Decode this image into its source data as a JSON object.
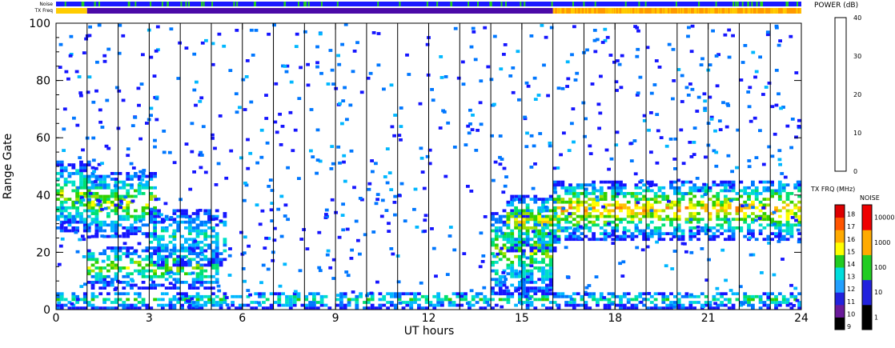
{
  "chart_data": {
    "type": "heatmap",
    "title": "",
    "xlabel": "UT hours",
    "ylabel": "Range Gate",
    "xlim": [
      0,
      24
    ],
    "ylim": [
      0,
      100
    ],
    "x_ticks": [
      "0",
      "3",
      "6",
      "9",
      "12",
      "15",
      "18",
      "21",
      "24"
    ],
    "y_ticks": [
      "0",
      "20",
      "40",
      "60",
      "80",
      "100"
    ],
    "hour_lines": [
      1,
      2,
      3,
      4,
      5,
      6,
      7,
      8,
      9,
      10,
      11,
      12,
      13,
      14,
      15,
      16,
      17,
      18,
      19,
      20,
      21,
      22,
      23
    ],
    "grid": false,
    "strips": {
      "noise_label": "Noise",
      "txfreq_label": "TX Freq",
      "noise_color": "#1a1aff",
      "noise_flag_color": "#22cc22",
      "txfreq_segments": [
        {
          "x0": 0,
          "x1": 1,
          "color": "#ffcc00"
        },
        {
          "x0": 1,
          "x1": 16,
          "color": "#4b0aa8"
        },
        {
          "x0": 16,
          "x1": 24,
          "color": "#ff9900"
        }
      ]
    },
    "echo_regions": [
      {
        "name": "band-0-2h",
        "x0": 0,
        "x1": 1.2,
        "y0": 27,
        "y1": 52,
        "peak": 20
      },
      {
        "name": "band-1-3h",
        "x0": 1.0,
        "x1": 3.2,
        "y0": 25,
        "y1": 48,
        "peak": 22
      },
      {
        "name": "band-1-5h-low",
        "x0": 1.0,
        "x1": 5.2,
        "y0": 7,
        "y1": 22,
        "peak": 20
      },
      {
        "name": "band-3-5h",
        "x0": 3.0,
        "x1": 5.5,
        "y0": 15,
        "y1": 35,
        "peak": 12
      },
      {
        "name": "ground-gates",
        "x0": 0,
        "x1": 24,
        "y0": 0,
        "y1": 6,
        "peak": 14
      },
      {
        "name": "band-14-16h",
        "x0": 14.0,
        "x1": 16.0,
        "y0": 5,
        "y1": 35,
        "peak": 20
      },
      {
        "name": "band-15-16h",
        "x0": 14.5,
        "x1": 16.2,
        "y0": 20,
        "y1": 40,
        "peak": 25
      },
      {
        "name": "band-16-24h",
        "x0": 16.0,
        "x1": 24,
        "y0": 24,
        "y1": 45,
        "peak": 28
      }
    ],
    "power_scale": {
      "label": "POWER (dB)",
      "min": 0,
      "max": 40,
      "ticks": [
        "0",
        "10",
        "20",
        "30",
        "40"
      ],
      "colors": [
        "#1515ff",
        "#0077ff",
        "#00b7ff",
        "#00e0c8",
        "#00e070",
        "#30d000",
        "#a0e000",
        "#ffff00",
        "#ffc000",
        "#ff8000",
        "#ff3000",
        "#e00000"
      ]
    },
    "txfrq_scale": {
      "label": "TX FRQ (MHz)",
      "ticks": [
        "9",
        "10",
        "11",
        "12",
        "13",
        "14",
        "15",
        "16",
        "17",
        "18"
      ],
      "colors": [
        "#000000",
        "#6a1a9a",
        "#2222dd",
        "#22a0ff",
        "#00dddd",
        "#22cc22",
        "#ffff00",
        "#ffaa00",
        "#ff5500",
        "#dd0000"
      ]
    },
    "noise_scale": {
      "label": "NOISE",
      "ticks": [
        "1",
        "10",
        "100",
        "1000",
        "10000"
      ],
      "colors": [
        "#000000",
        "#2222dd",
        "#22cc22",
        "#ffaa00",
        "#ee0000"
      ]
    }
  }
}
